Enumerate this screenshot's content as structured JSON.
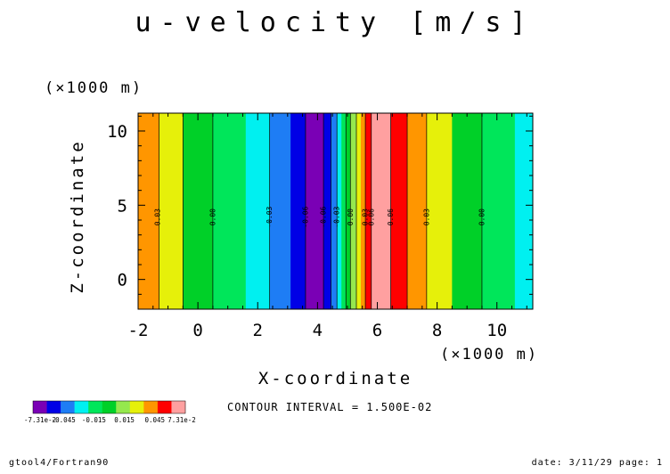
{
  "title": "u-velocity [m/s]",
  "footer": {
    "left": "gtool4/Fortran90",
    "right": "date: 3/11/29 page: 1"
  },
  "contour_interval": "CONTOUR INTERVAL = 1.500E-02",
  "colors": {
    "palette": [
      "#7a00b5",
      "#0000e6",
      "#1e7df5",
      "#00f0f0",
      "#00e65a",
      "#00d028",
      "#95e84e",
      "#e6f00a",
      "#ff9600",
      "#ff0000",
      "#ffa0a0"
    ]
  },
  "colorbar": {
    "tick_labels": [
      "-7.31e-2",
      "-0.045",
      "-0.015",
      "0.015",
      "0.045",
      "7.31e-2"
    ]
  },
  "chart_data": {
    "type": "heatmap",
    "title": "u-velocity [m/s]",
    "xlabel": "X-coordinate",
    "ylabel": "Z-coordinate",
    "x_unit": "(×1000 m)",
    "y_unit": "(×1000 m)",
    "xlim": [
      -2,
      11.2
    ],
    "ylim": [
      -2,
      11.2
    ],
    "xticks": [
      -2,
      0,
      2,
      4,
      6,
      8,
      10
    ],
    "yticks": [
      0,
      5,
      10
    ],
    "x_tick_labels": [
      "-2",
      "0",
      "2",
      "4",
      "6",
      "8",
      "10"
    ],
    "y_tick_labels": [
      "0",
      "5",
      "10"
    ],
    "bands": [
      {
        "x0": -2.0,
        "x1": -1.3,
        "color_index": 8
      },
      {
        "x0": -1.3,
        "x1": -0.5,
        "color_index": 7
      },
      {
        "x0": -0.5,
        "x1": 0.5,
        "color_index": 5
      },
      {
        "x0": 0.5,
        "x1": 1.6,
        "color_index": 4
      },
      {
        "x0": 1.6,
        "x1": 2.4,
        "color_index": 3
      },
      {
        "x0": 2.4,
        "x1": 3.1,
        "color_index": 2
      },
      {
        "x0": 3.1,
        "x1": 3.6,
        "color_index": 1
      },
      {
        "x0": 3.6,
        "x1": 4.2,
        "color_index": 0
      },
      {
        "x0": 4.2,
        "x1": 4.45,
        "color_index": 1
      },
      {
        "x0": 4.45,
        "x1": 4.65,
        "color_index": 2
      },
      {
        "x0": 4.65,
        "x1": 4.8,
        "color_index": 3
      },
      {
        "x0": 4.8,
        "x1": 4.95,
        "color_index": 4
      },
      {
        "x0": 4.95,
        "x1": 5.1,
        "color_index": 5
      },
      {
        "x0": 5.1,
        "x1": 5.3,
        "color_index": 6
      },
      {
        "x0": 5.3,
        "x1": 5.45,
        "color_index": 7
      },
      {
        "x0": 5.45,
        "x1": 5.6,
        "color_index": 8
      },
      {
        "x0": 5.6,
        "x1": 5.8,
        "color_index": 9
      },
      {
        "x0": 5.8,
        "x1": 6.45,
        "color_index": 10
      },
      {
        "x0": 6.45,
        "x1": 7.0,
        "color_index": 9
      },
      {
        "x0": 7.0,
        "x1": 7.65,
        "color_index": 8
      },
      {
        "x0": 7.65,
        "x1": 8.5,
        "color_index": 7
      },
      {
        "x0": 8.5,
        "x1": 9.5,
        "color_index": 5
      },
      {
        "x0": 9.5,
        "x1": 10.6,
        "color_index": 4
      },
      {
        "x0": 10.6,
        "x1": 11.2,
        "color_index": 3
      }
    ],
    "contour_lines_x": [
      -1.3,
      -0.5,
      0.5,
      2.4,
      3.6,
      4.2,
      4.45,
      4.65,
      4.95,
      5.1,
      5.3,
      5.6,
      5.8,
      6.45,
      7.0,
      7.65,
      9.5
    ],
    "contour_labels": [
      {
        "x": -1.35,
        "y": 4.2,
        "text": "0.03"
      },
      {
        "x": 0.5,
        "y": 4.2,
        "text": "0.00"
      },
      {
        "x": 2.4,
        "y": 4.2,
        "text": "-0.03"
      },
      {
        "x": 3.6,
        "y": 4.2,
        "text": "-0.06"
      },
      {
        "x": 4.2,
        "y": 4.2,
        "text": "-0.06"
      },
      {
        "x": 4.65,
        "y": 4.2,
        "text": "-0.03"
      },
      {
        "x": 5.1,
        "y": 4.2,
        "text": "0.00"
      },
      {
        "x": 5.6,
        "y": 4.2,
        "text": "0.03"
      },
      {
        "x": 5.8,
        "y": 4.2,
        "text": "0.06"
      },
      {
        "x": 6.45,
        "y": 4.2,
        "text": "0.06"
      },
      {
        "x": 7.65,
        "y": 4.2,
        "text": "0.03"
      },
      {
        "x": 9.5,
        "y": 4.2,
        "text": "0.00"
      }
    ],
    "grid": false
  }
}
